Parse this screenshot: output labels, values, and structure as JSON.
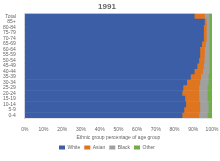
{
  "chart_data": {
    "type": "bar",
    "title": "1991",
    "orientation": "horizontal",
    "stacked": true,
    "x_label": "Ethnic group percentage of age group",
    "categories": [
      "0-4",
      "5-9",
      "10-14",
      "15-19",
      "20-24",
      "25-29",
      "30-34",
      "35-39",
      "40-44",
      "45-49",
      "50-54",
      "55-59",
      "60-64",
      "65-69",
      "70-74",
      "75-79",
      "80-84",
      "85+",
      "Total"
    ],
    "series": [
      {
        "name": "White",
        "color": "#3B5EA6",
        "values": [
          84.0,
          85.0,
          86.0,
          85.5,
          84.0,
          84.5,
          86.5,
          88.5,
          90.5,
          92.0,
          93.0,
          93.5,
          93.5,
          94.5,
          95.5,
          95.5,
          95.5,
          96.0,
          90.5
        ]
      },
      {
        "name": "Asian",
        "color": "#E07520",
        "values": [
          9.0,
          8.5,
          7.5,
          7.5,
          9.0,
          8.5,
          7.0,
          5.5,
          4.5,
          3.5,
          2.8,
          2.5,
          2.5,
          2.0,
          1.5,
          1.5,
          1.5,
          1.0,
          5.5
        ]
      },
      {
        "name": "Black",
        "color": "#A0A0A0",
        "values": [
          4.5,
          4.5,
          4.5,
          4.5,
          4.5,
          4.5,
          4.5,
          4.0,
          3.5,
          3.0,
          2.7,
          2.5,
          2.5,
          2.0,
          1.5,
          1.5,
          1.5,
          1.5,
          2.5
        ]
      },
      {
        "name": "Other",
        "color": "#70AD47",
        "values": [
          2.5,
          2.0,
          2.0,
          2.5,
          2.5,
          2.5,
          2.0,
          2.0,
          1.5,
          1.5,
          1.5,
          1.5,
          1.5,
          1.5,
          1.5,
          1.5,
          1.5,
          1.5,
          1.5
        ]
      }
    ],
    "xlim": [
      0,
      100
    ],
    "xticks": [
      {
        "value": 0,
        "label": "0%"
      },
      {
        "value": 10,
        "label": "10%"
      },
      {
        "value": 20,
        "label": "20%"
      },
      {
        "value": 30,
        "label": "30%"
      },
      {
        "value": 40,
        "label": "40%"
      },
      {
        "value": 50,
        "label": "50%"
      },
      {
        "value": 60,
        "label": "60%"
      },
      {
        "value": 70,
        "label": "70%"
      },
      {
        "value": 80,
        "label": "80%"
      },
      {
        "value": 90,
        "label": "90%"
      },
      {
        "value": 100,
        "label": "100%"
      }
    ],
    "grid": false,
    "legend": "bottom"
  }
}
